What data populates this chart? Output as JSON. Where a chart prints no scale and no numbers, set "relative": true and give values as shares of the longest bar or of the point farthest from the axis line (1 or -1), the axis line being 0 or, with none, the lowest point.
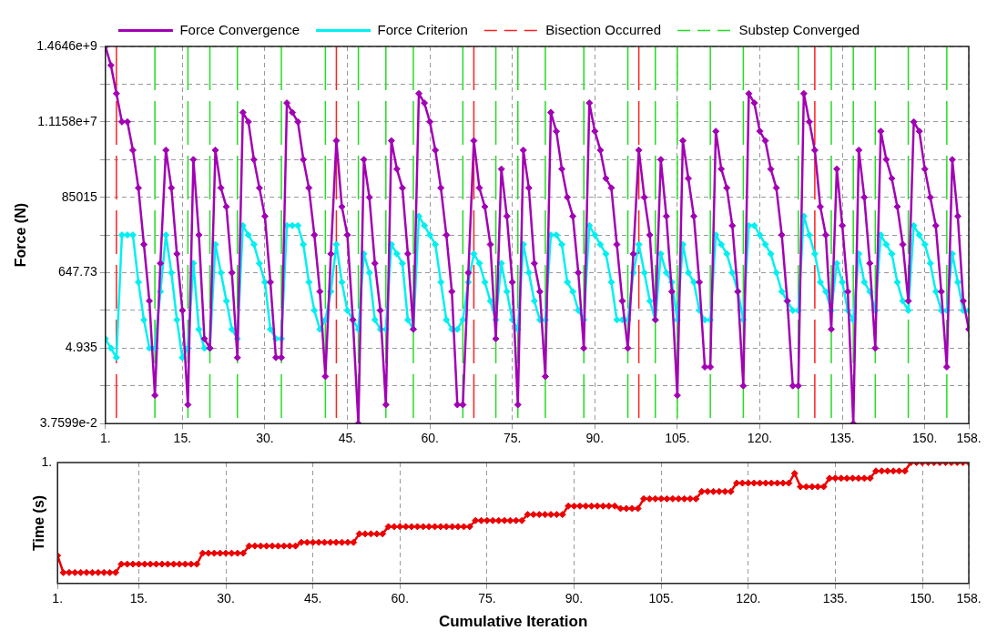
{
  "chart_data": [
    {
      "type": "line",
      "ylabel": "Force (N)",
      "log": true,
      "grid": true,
      "legend": "top",
      "marker": "diamond",
      "line_style": "solid",
      "x": [
        1,
        2,
        3,
        4,
        5,
        6,
        7,
        8,
        9,
        10,
        11,
        12,
        13,
        14,
        15,
        16,
        17,
        18,
        19,
        20,
        21,
        22,
        23,
        24,
        25,
        26,
        27,
        28,
        29,
        30,
        31,
        32,
        33,
        34,
        35,
        36,
        37,
        38,
        39,
        40,
        41,
        42,
        43,
        44,
        45,
        46,
        47,
        48,
        49,
        50,
        51,
        52,
        53,
        54,
        55,
        56,
        57,
        58,
        59,
        60,
        61,
        62,
        63,
        64,
        65,
        66,
        67,
        68,
        69,
        70,
        71,
        72,
        73,
        74,
        75,
        76,
        77,
        78,
        79,
        80,
        81,
        82,
        83,
        84,
        85,
        86,
        87,
        88,
        89,
        90,
        91,
        92,
        93,
        94,
        95,
        96,
        97,
        98,
        99,
        100,
        101,
        102,
        103,
        104,
        105,
        106,
        107,
        108,
        109,
        110,
        111,
        112,
        113,
        114,
        115,
        116,
        117,
        118,
        119,
        120,
        121,
        122,
        123,
        124,
        125,
        126,
        127,
        128,
        129,
        130,
        131,
        132,
        133,
        134,
        135,
        136,
        137,
        138,
        139,
        140,
        141,
        142,
        143,
        144,
        145,
        146,
        147,
        148,
        149,
        150,
        151,
        152,
        153,
        154,
        155,
        156,
        157,
        158
      ],
      "xlim": [
        1,
        158
      ],
      "xticks": [
        {
          "value": 1,
          "label": "1."
        },
        {
          "value": 15,
          "label": "15."
        },
        {
          "value": 30,
          "label": "30."
        },
        {
          "value": 45,
          "label": "45."
        },
        {
          "value": 60,
          "label": "60."
        },
        {
          "value": 75,
          "label": "75."
        },
        {
          "value": 90,
          "label": "90."
        },
        {
          "value": 105,
          "label": "105."
        },
        {
          "value": 120,
          "label": "120."
        },
        {
          "value": 135,
          "label": "135."
        },
        {
          "value": 150,
          "label": "150."
        },
        {
          "value": 158,
          "label": "158."
        }
      ],
      "ylim": [
        0.037599,
        1464600000
      ],
      "yticks": [
        {
          "value": 0.037599,
          "label": "3.7599e-2"
        },
        {
          "value": 0.4308,
          "label": null
        },
        4.935,
        {
          "value": 56.54,
          "label": null
        },
        647.73,
        {
          "value": 7421,
          "label": null
        },
        85015,
        {
          "value": 973960,
          "label": null
        },
        {
          "value": 11158000,
          "label": "1.1158e+7"
        },
        {
          "value": 127840000,
          "label": null
        },
        {
          "value": 1464600000,
          "label": "1.4646e+9"
        }
      ],
      "series": [
        {
          "name": "Force Convergence",
          "color": "#a200b4",
          "values": [
            1464600000,
            433000000,
            69500000,
            11160000,
            11160000,
            1790000,
            156000,
            4030,
            104,
            0.234,
            1190,
            1790000,
            156000,
            2190,
            56.5,
            0.127,
            974000,
            7420,
            9.08,
            4.93,
            1790000,
            156000,
            46200,
            648,
            2.68,
            20500000,
            11160000,
            974000,
            156000,
            25100,
            352,
            2.68,
            2.68,
            37800000,
            20500000,
            11160000,
            974000,
            156000,
            7420,
            191,
            0.792,
            2190,
            3300000,
            46200,
            7420,
            30.7,
            0.037599,
            974000,
            85000,
            1190,
            56.5,
            0.127,
            3300000,
            529000,
            156000,
            2190,
            16.7,
            69500000,
            37800000,
            11160000,
            1790000,
            156000,
            7420,
            191,
            0.127,
            0.127,
            648,
            3300000,
            156000,
            46200,
            4030,
            9.08,
            529000,
            25100,
            352,
            0.127,
            1790000,
            156000,
            1190,
            191,
            0.792,
            20500000,
            6070000,
            529000,
            85000,
            25100,
            648,
            4.93,
            37800000,
            6070000,
            1790000,
            288000,
            156000,
            4030,
            104,
            4.93,
            2190,
            1790000,
            85000,
            7420,
            30.7,
            974000,
            25100,
            191,
            0.234,
            3300000,
            288000,
            25100,
            352,
            1.46,
            1.46,
            6070000,
            529000,
            156000,
            13600,
            191,
            0.431,
            69500000,
            37800000,
            6070000,
            3300000,
            529000,
            156000,
            7420,
            104,
            0.431,
            0.431,
            69500000,
            11160000,
            1790000,
            46200,
            7420,
            16.7,
            529000,
            13600,
            191,
            0.037599,
            1790000,
            85000,
            1190,
            4.93,
            6070000,
            974000,
            288000,
            46200,
            4030,
            104,
            11160000,
            6070000,
            529000,
            85000,
            13600,
            191,
            1.46,
            974000,
            25100,
            104,
            16.7
          ]
        },
        {
          "name": "Force Criterion",
          "color": "#00f0f0",
          "values": [
            9.08,
            4.93,
            2.68,
            7420,
            7420,
            7420,
            352,
            30.7,
            4.93,
            4.93,
            191,
            7420,
            648,
            30.7,
            2.68,
            4.93,
            1190,
            16.7,
            4.93,
            4.93,
            4030,
            648,
            104,
            16.7,
            9.08,
            13600,
            7420,
            4030,
            1190,
            352,
            16.7,
            9.08,
            9.08,
            13600,
            13600,
            13600,
            4030,
            352,
            56.5,
            16.7,
            30.7,
            191,
            4030,
            352,
            56.5,
            30.7,
            16.7,
            2190,
            648,
            30.7,
            16.7,
            16.7,
            4030,
            2190,
            1190,
            30.7,
            16.7,
            25100,
            13600,
            7420,
            4030,
            352,
            30.7,
            16.7,
            16.7,
            30.7,
            352,
            2190,
            1190,
            352,
            104,
            30.7,
            1190,
            191,
            30.7,
            16.7,
            4030,
            648,
            104,
            30.7,
            30.7,
            7420,
            7420,
            4030,
            352,
            191,
            56.5,
            30.7,
            13600,
            7420,
            4030,
            2190,
            352,
            30.7,
            30.7,
            30.7,
            648,
            4030,
            648,
            104,
            30.7,
            2190,
            648,
            352,
            30.7,
            4030,
            648,
            352,
            56.5,
            30.7,
            30.7,
            7420,
            4030,
            2190,
            648,
            191,
            30.7,
            13600,
            13600,
            7420,
            4030,
            2190,
            648,
            191,
            104,
            56.5,
            56.5,
            25100,
            7420,
            2190,
            352,
            191,
            56.5,
            1190,
            352,
            56.5,
            30.7,
            2190,
            352,
            191,
            56.5,
            7420,
            4030,
            2190,
            352,
            104,
            56.5,
            13600,
            7420,
            4030,
            1190,
            191,
            56.5,
            56.5,
            2190,
            352,
            56.5,
            56.5
          ]
        }
      ],
      "ref_lines": [
        {
          "axis": "x",
          "value": 3,
          "label": "Bisection Occurred",
          "color": "#ff2020",
          "line_style": "dashed"
        },
        {
          "axis": "x",
          "value": 43,
          "color": "#ff2020",
          "line_style": "dashed"
        },
        {
          "axis": "x",
          "value": 68,
          "color": "#ff2020",
          "line_style": "dashed"
        },
        {
          "axis": "x",
          "value": 98,
          "color": "#ff2020",
          "line_style": "dashed"
        },
        {
          "axis": "x",
          "value": 130,
          "color": "#ff2020",
          "line_style": "dashed"
        },
        {
          "axis": "x",
          "value": 10,
          "label": "Substep Converged",
          "color": "#22dd22",
          "line_style": "dashed"
        },
        {
          "axis": "x",
          "value": 16,
          "color": "#22dd22",
          "line_style": "dashed"
        },
        {
          "axis": "x",
          "value": 20,
          "color": "#22dd22",
          "line_style": "dashed"
        },
        {
          "axis": "x",
          "value": 25,
          "color": "#22dd22",
          "line_style": "dashed"
        },
        {
          "axis": "x",
          "value": 33,
          "color": "#22dd22",
          "line_style": "dashed"
        },
        {
          "axis": "x",
          "value": 41,
          "color": "#22dd22",
          "line_style": "dashed"
        },
        {
          "axis": "x",
          "value": 47,
          "color": "#22dd22",
          "line_style": "dashed"
        },
        {
          "axis": "x",
          "value": 52,
          "color": "#22dd22",
          "line_style": "dashed"
        },
        {
          "axis": "x",
          "value": 57,
          "color": "#22dd22",
          "line_style": "dashed"
        },
        {
          "axis": "x",
          "value": 66,
          "color": "#22dd22",
          "line_style": "dashed"
        },
        {
          "axis": "x",
          "value": 72,
          "color": "#22dd22",
          "line_style": "dashed"
        },
        {
          "axis": "x",
          "value": 76,
          "color": "#22dd22",
          "line_style": "dashed"
        },
        {
          "axis": "x",
          "value": 81,
          "color": "#22dd22",
          "line_style": "dashed"
        },
        {
          "axis": "x",
          "value": 88,
          "color": "#22dd22",
          "line_style": "dashed"
        },
        {
          "axis": "x",
          "value": 96,
          "color": "#22dd22",
          "line_style": "dashed"
        },
        {
          "axis": "x",
          "value": 101,
          "color": "#22dd22",
          "line_style": "dashed"
        },
        {
          "axis": "x",
          "value": 105,
          "color": "#22dd22",
          "line_style": "dashed"
        },
        {
          "axis": "x",
          "value": 111,
          "color": "#22dd22",
          "line_style": "dashed"
        },
        {
          "axis": "x",
          "value": 117,
          "color": "#22dd22",
          "line_style": "dashed"
        },
        {
          "axis": "x",
          "value": 127,
          "color": "#22dd22",
          "line_style": "dashed"
        },
        {
          "axis": "x",
          "value": 133,
          "color": "#22dd22",
          "line_style": "dashed"
        },
        {
          "axis": "x",
          "value": 137,
          "color": "#22dd22",
          "line_style": "dashed"
        },
        {
          "axis": "x",
          "value": 141,
          "color": "#22dd22",
          "line_style": "dashed"
        },
        {
          "axis": "x",
          "value": 147,
          "color": "#22dd22",
          "line_style": "dashed"
        },
        {
          "axis": "x",
          "value": 154,
          "color": "#22dd22",
          "line_style": "dashed"
        }
      ]
    },
    {
      "type": "line",
      "ylabel": "Time (s)",
      "xlabel": "Cumulative Iteration",
      "relative": true,
      "grid": "x",
      "marker": "diamond",
      "line_style": "solid",
      "x": [
        1,
        2,
        3,
        4,
        5,
        6,
        7,
        8,
        9,
        10,
        11,
        12,
        13,
        14,
        15,
        16,
        17,
        18,
        19,
        20,
        21,
        22,
        23,
        24,
        25,
        26,
        27,
        28,
        29,
        30,
        31,
        32,
        33,
        34,
        35,
        36,
        37,
        38,
        39,
        40,
        41,
        42,
        43,
        44,
        45,
        46,
        47,
        48,
        49,
        50,
        51,
        52,
        53,
        54,
        55,
        56,
        57,
        58,
        59,
        60,
        61,
        62,
        63,
        64,
        65,
        66,
        67,
        68,
        69,
        70,
        71,
        72,
        73,
        74,
        75,
        76,
        77,
        78,
        79,
        80,
        81,
        82,
        83,
        84,
        85,
        86,
        87,
        88,
        89,
        90,
        91,
        92,
        93,
        94,
        95,
        96,
        97,
        98,
        99,
        100,
        101,
        102,
        103,
        104,
        105,
        106,
        107,
        108,
        109,
        110,
        111,
        112,
        113,
        114,
        115,
        116,
        117,
        118,
        119,
        120,
        121,
        122,
        123,
        124,
        125,
        126,
        127,
        128,
        129,
        130,
        131,
        132,
        133,
        134,
        135,
        136,
        137,
        138,
        139,
        140,
        141,
        142,
        143,
        144,
        145,
        146,
        147,
        148,
        149,
        150,
        151,
        152,
        153,
        154,
        155,
        156,
        157,
        158
      ],
      "xlim": [
        1,
        158
      ],
      "xticks": [
        {
          "value": 1,
          "label": "1."
        },
        {
          "value": 15,
          "label": "15."
        },
        {
          "value": 30,
          "label": "30."
        },
        {
          "value": 45,
          "label": "45."
        },
        {
          "value": 60,
          "label": "60."
        },
        {
          "value": 75,
          "label": "75."
        },
        {
          "value": 90,
          "label": "90."
        },
        {
          "value": 105,
          "label": "105."
        },
        {
          "value": 120,
          "label": "120."
        },
        {
          "value": 135,
          "label": "135."
        },
        {
          "value": 150,
          "label": "150."
        },
        {
          "value": 158,
          "label": "158."
        }
      ],
      "annotations": [
        "1."
      ],
      "series": [
        {
          "color": "#ee0000",
          "values": [
            0.23,
            0.09,
            0.09,
            0.09,
            0.09,
            0.09,
            0.09,
            0.09,
            0.09,
            0.09,
            0.09,
            0.16,
            0.16,
            0.16,
            0.16,
            0.16,
            0.16,
            0.16,
            0.16,
            0.16,
            0.16,
            0.16,
            0.16,
            0.16,
            0.16,
            0.25,
            0.25,
            0.25,
            0.25,
            0.25,
            0.25,
            0.25,
            0.25,
            0.31,
            0.31,
            0.31,
            0.31,
            0.31,
            0.31,
            0.31,
            0.31,
            0.31,
            0.34,
            0.34,
            0.34,
            0.34,
            0.34,
            0.34,
            0.34,
            0.34,
            0.34,
            0.34,
            0.41,
            0.41,
            0.41,
            0.41,
            0.41,
            0.47,
            0.47,
            0.47,
            0.47,
            0.47,
            0.47,
            0.47,
            0.47,
            0.47,
            0.47,
            0.47,
            0.47,
            0.47,
            0.47,
            0.47,
            0.52,
            0.52,
            0.52,
            0.52,
            0.52,
            0.52,
            0.52,
            0.52,
            0.52,
            0.57,
            0.57,
            0.57,
            0.57,
            0.57,
            0.57,
            0.57,
            0.64,
            0.64,
            0.64,
            0.64,
            0.64,
            0.64,
            0.64,
            0.64,
            0.64,
            0.62,
            0.62,
            0.62,
            0.62,
            0.7,
            0.7,
            0.7,
            0.7,
            0.7,
            0.7,
            0.7,
            0.7,
            0.7,
            0.7,
            0.76,
            0.76,
            0.76,
            0.76,
            0.76,
            0.76,
            0.83,
            0.83,
            0.83,
            0.83,
            0.83,
            0.83,
            0.83,
            0.83,
            0.83,
            0.83,
            0.91,
            0.8,
            0.8,
            0.8,
            0.8,
            0.8,
            0.87,
            0.87,
            0.87,
            0.87,
            0.87,
            0.87,
            0.87,
            0.87,
            0.93,
            0.93,
            0.93,
            0.93,
            0.93,
            0.93,
            1,
            1,
            1,
            1,
            1,
            1,
            1,
            1,
            1,
            1,
            1
          ]
        }
      ]
    }
  ]
}
